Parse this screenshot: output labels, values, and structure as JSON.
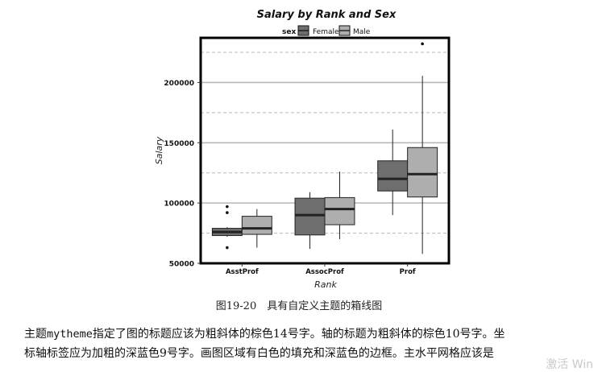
{
  "chart_data": {
    "type": "box",
    "title": "Salary by Rank and Sex",
    "xlabel": "Rank",
    "ylabel": "Salary",
    "legend": {
      "title": "sex",
      "position": "top",
      "entries": [
        "Female",
        "Male"
      ]
    },
    "categories": [
      "AsstProf",
      "AssocProf",
      "Prof"
    ],
    "ylim": [
      50000,
      237000
    ],
    "yticks": [
      50000,
      100000,
      150000,
      200000
    ],
    "grid": {
      "major_y": true,
      "minor_y_dashed": true,
      "vertical": false
    },
    "colors": {
      "Female": "#6e6e6e",
      "Male": "#aeaeae",
      "border": "#000000",
      "median": "#222222"
    },
    "series": [
      {
        "name": "Female",
        "boxes": [
          {
            "category": "AsstProf",
            "whisker_low": 72000,
            "q1": 73000,
            "median": 76000,
            "q3": 79000,
            "whisker_high": 80000,
            "outliers": [
              63000,
              92000,
              97000
            ]
          },
          {
            "category": "AssocProf",
            "whisker_low": 62000,
            "q1": 73500,
            "median": 90000,
            "q3": 104000,
            "whisker_high": 109000,
            "outliers": []
          },
          {
            "category": "Prof",
            "whisker_low": 90000,
            "q1": 110000,
            "median": 120000,
            "q3": 135000,
            "whisker_high": 161000,
            "outliers": []
          }
        ]
      },
      {
        "name": "Male",
        "boxes": [
          {
            "category": "AsstProf",
            "whisker_low": 63000,
            "q1": 74000,
            "median": 79000,
            "q3": 89000,
            "whisker_high": 95000,
            "outliers": []
          },
          {
            "category": "AssocProf",
            "whisker_low": 70000,
            "q1": 82000,
            "median": 95000,
            "q3": 104500,
            "whisker_high": 126000,
            "outliers": []
          },
          {
            "category": "Prof",
            "whisker_low": 57800,
            "q1": 105000,
            "median": 124000,
            "q3": 146000,
            "whisker_high": 205500,
            "outliers": [
              232000
            ]
          }
        ]
      }
    ]
  },
  "document": {
    "caption": "图19-20　具有自定义主题的箱线图",
    "para_line1_a": "主题",
    "para_line1_code": "mytheme",
    "para_line1_b": "指定了图的标题应该为粗斜体的棕色14号字。轴的标题为粗斜体的棕色10号字。坐",
    "para_line2": "标轴标签应为加粗的深蓝色9号字。画图区域有白色的填充和深蓝色的边框。主水平网格应该是",
    "watermark": "激活 Win"
  }
}
